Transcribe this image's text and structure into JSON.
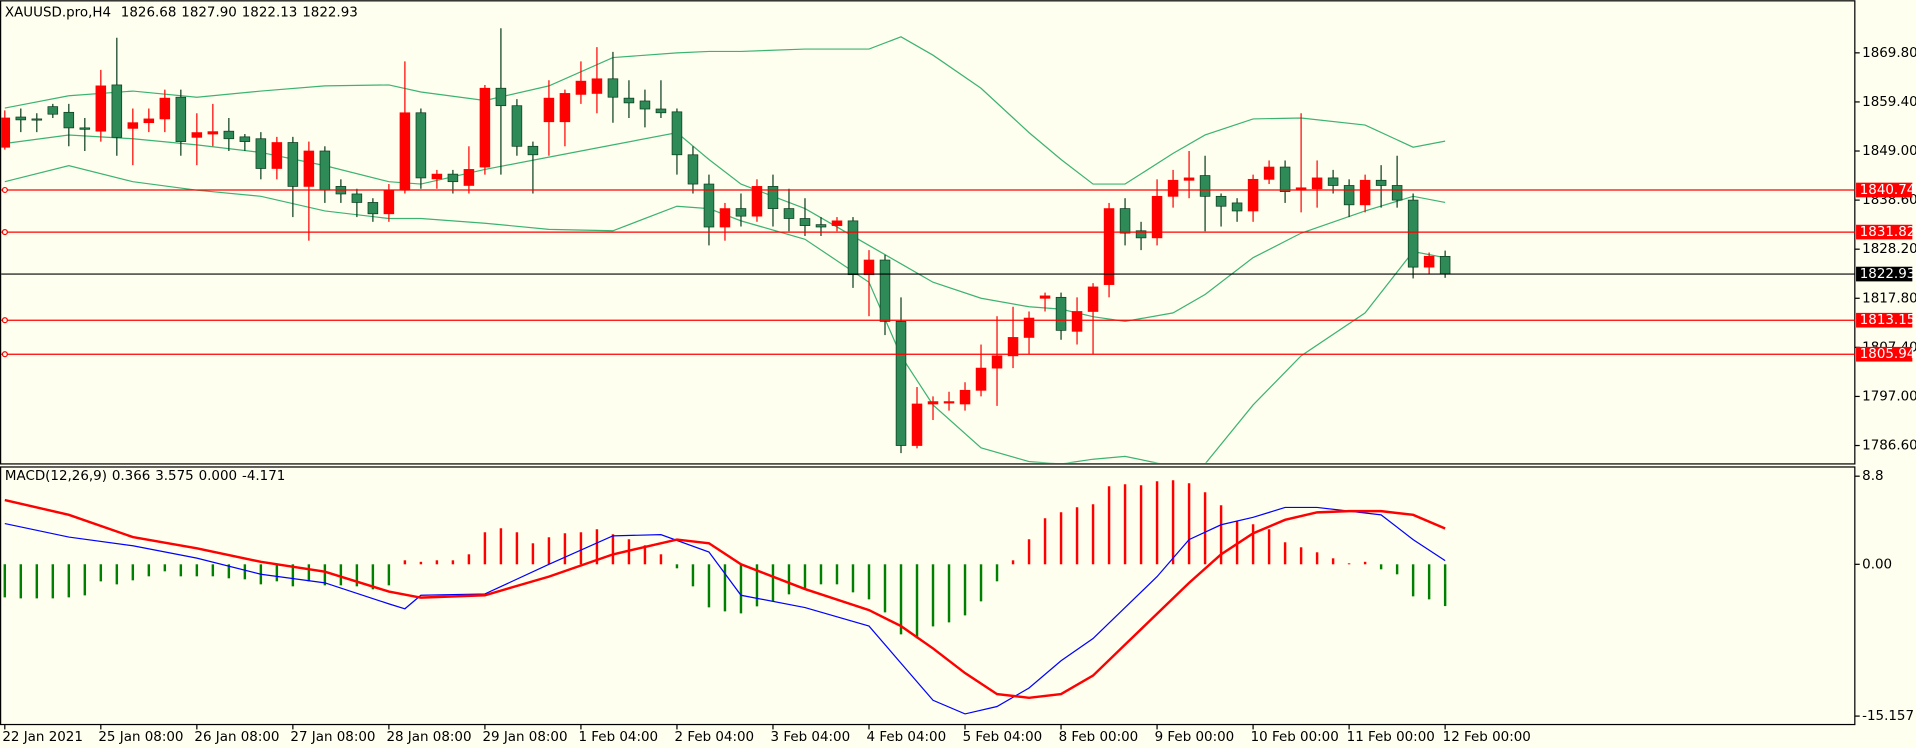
{
  "chart_data": {
    "type": "candlestick",
    "symbol": "XAUUSD.pro,H4",
    "header_values": [
      1826.68,
      {
        "value": 1827.9,
        "label": "1827.90"
      },
      1822.13,
      1822.93
    ],
    "categories": [
      "22 Jan 2021",
      null,
      null,
      null,
      null,
      null,
      "25 Jan 08:00",
      null,
      null,
      null,
      null,
      null,
      "26 Jan 08:00",
      null,
      null,
      null,
      null,
      null,
      "27 Jan 08:00",
      null,
      null,
      null,
      null,
      null,
      "28 Jan 08:00",
      null,
      null,
      null,
      null,
      null,
      "29 Jan 08:00",
      null,
      null,
      null,
      null,
      null,
      "1 Feb 04:00",
      null,
      null,
      null,
      null,
      null,
      "2 Feb 04:00",
      null,
      null,
      null,
      null,
      null,
      "3 Feb 04:00",
      null,
      null,
      null,
      null,
      null,
      "4 Feb 04:00",
      null,
      null,
      null,
      null,
      null,
      "5 Feb 04:00",
      null,
      null,
      null,
      null,
      null,
      "8 Feb 00:00",
      null,
      null,
      null,
      null,
      null,
      "9 Feb 00:00",
      null,
      null,
      null,
      null,
      null,
      "10 Feb 00:00",
      null,
      null,
      null,
      null,
      null,
      "11 Feb 00:00",
      null,
      null,
      null,
      null,
      null,
      "12 Feb 00:00"
    ],
    "open": [
      1849.8,
      1856.2,
      1855.8,
      1858.4,
      1857.2,
      1853.9,
      1853.2,
      1863,
      1853.8,
      1855,
      1855.8,
      1860.4,
      1851.9,
      1852.6,
      1853.2,
      1852,
      1851.6,
      1845.3,
      1850.8,
      1841.5,
      1849,
      1841.5,
      1839.9,
      1838.1,
      1835.7,
      1840.7,
      1857.1,
      1843.1,
      1844.1,
      1841.7,
      1845.6,
      1862.3,
      1858.6,
      1850,
      1855.2,
      1855.2,
      1861,
      1861.2,
      1864.3,
      1860.2,
      1859.6,
      1857.9,
      1857.3,
      1848.2,
      1842,
      1832.9,
      1836.8,
      1835.2,
      1841.5,
      1836.8,
      1834.7,
      1833.4,
      1833.2,
      1834.2,
      1822.8,
      1825.9,
      1812.9,
      1786.6,
      1795.4,
      1795.6,
      1795.4,
      1798.3,
      1803,
      1805.6,
      1809.5,
      1817.8,
      1818,
      1810.8,
      1815,
      1820.7,
      1836.8,
      1832.1,
      1830.6,
      1839.4,
      1842.8,
      1843.8,
      1839.4,
      1838,
      1836.3,
      1843,
      1845.6,
      1840.7,
      1841,
      1843.3,
      1841.7,
      1837.6,
      1842.8,
      1841.7,
      1838.6,
      1824.4,
      1826.68
    ],
    "high": [
      1857.6,
      1858,
      1857,
      1859,
      1859,
      1856,
      1866.2,
      1873,
      1858,
      1858,
      1862,
      1862,
      1857,
      1859,
      1856,
      1852.6,
      1853,
      1852,
      1852,
      1851,
      1850,
      1843,
      1841,
      1839,
      1842,
      1868,
      1858,
      1845,
      1845,
      1850,
      1863,
      1875,
      1860,
      1851,
      1864,
      1862,
      1868,
      1871,
      1870,
      1864,
      1862,
      1864,
      1858,
      1850,
      1844,
      1838,
      1840,
      1843,
      1844,
      1841,
      1839,
      1835,
      1835,
      1835,
      1828,
      1827,
      1818,
      1799,
      1797,
      1798,
      1800,
      1808,
      1814,
      1816,
      1815,
      1819,
      1819,
      1818,
      1821,
      1838,
      1839,
      1834,
      1843,
      1845,
      1849,
      1848,
      1840,
      1839,
      1844,
      1847,
      1847,
      1857,
      1847,
      1845,
      1843,
      1844,
      1846,
      1848,
      1840,
      1827.5,
      1827.9
    ],
    "low": [
      1849.3,
      1853,
      1853,
      1856,
      1850,
      1849,
      1851,
      1848,
      1846,
      1853,
      1853,
      1848,
      1846,
      1850,
      1849,
      1849,
      1843,
      1843,
      1835,
      1830,
      1838,
      1838,
      1835,
      1834,
      1834,
      1840,
      1841,
      1841,
      1840,
      1840,
      1844,
      1844,
      1848,
      1840,
      1848,
      1850,
      1859,
      1857,
      1855,
      1856,
      1854,
      1856,
      1844,
      1840,
      1829,
      1830,
      1833,
      1834,
      1833,
      1832,
      1831,
      1831,
      1832,
      1820,
      1814,
      1810,
      1785,
      1786,
      1792,
      1794,
      1794,
      1797,
      1795,
      1803,
      1806,
      1815,
      1809,
      1808,
      1806,
      1818,
      1829,
      1828,
      1829,
      1837,
      1839,
      1832,
      1833,
      1834,
      1834,
      1842,
      1838,
      1836,
      1837,
      1840,
      1835,
      1836,
      1837,
      1837,
      1822,
      1823,
      1822.13
    ],
    "close": [
      1856,
      1855.6,
      1855.6,
      1856.8,
      1853.9,
      1853.6,
      1862.8,
      1851.9,
      1855,
      1855.8,
      1860.2,
      1851,
      1852.9,
      1853.1,
      1851.6,
      1851,
      1845.3,
      1850.8,
      1841.5,
      1849,
      1840.7,
      1839.9,
      1838.1,
      1835.7,
      1840.7,
      1857.1,
      1843.3,
      1844.1,
      1842.5,
      1845.1,
      1862.3,
      1858.6,
      1850,
      1848.2,
      1860.2,
      1861.2,
      1863.8,
      1864.3,
      1860.4,
      1859.2,
      1857.9,
      1857.1,
      1848.2,
      1842,
      1832.9,
      1836.8,
      1835.2,
      1841.5,
      1836.8,
      1834.7,
      1833.2,
      1832.9,
      1834.2,
      1822.8,
      1825.9,
      1812.9,
      1786.6,
      1795.4,
      1795.9,
      1795.9,
      1798.3,
      1803,
      1805.6,
      1809.5,
      1813.6,
      1818.3,
      1811,
      1815,
      1820.2,
      1836.8,
      1831.6,
      1830.6,
      1839.4,
      1842.8,
      1843.3,
      1839.4,
      1837.3,
      1836.3,
      1843,
      1845.6,
      1840.4,
      1841.2,
      1843.3,
      1841.7,
      1837.6,
      1842.8,
      1841.7,
      1838.6,
      1824.4,
      1826.7,
      1822.93
    ],
    "up_color": "#ff0000",
    "down_color": "#2e8b57",
    "xlim": [
      -0.3,
      115.6
    ],
    "ylim": [
      1782.7,
      1880.95
    ],
    "yticks": [
      {
        "value": 1869.8,
        "label": "1869.80"
      },
      {
        "value": 1859.4,
        "label": "1859.40"
      },
      {
        "value": 1849,
        "label": "1849.00"
      },
      {
        "value": 1838.6,
        "label": "1838.60"
      },
      {
        "value": 1828.2,
        "label": "1828.20"
      },
      {
        "value": 1817.8,
        "label": "1817.80"
      },
      {
        "value": 1807.4,
        "label": "1807.40"
      },
      {
        "value": 1797,
        "label": "1797.00"
      },
      {
        "value": 1786.6,
        "label": "1786.60"
      }
    ],
    "bands": {
      "color": "#3cb371",
      "x": [
        0,
        4,
        8,
        12,
        16,
        20,
        24,
        26,
        30,
        34,
        38,
        42,
        44,
        46,
        50,
        54,
        56,
        58,
        61,
        64,
        66,
        68,
        70,
        73,
        75,
        78,
        81,
        85,
        88,
        90
      ],
      "upper": [
        1858.1,
        1860.7,
        1861.7,
        1860.4,
        1861.7,
        1862.8,
        1863.0,
        1861.5,
        1859.7,
        1862.8,
        1868.8,
        1869.8,
        1870.1,
        1870.1,
        1870.6,
        1870.6,
        1873.2,
        1869.3,
        1862.3,
        1852.9,
        1847.2,
        1842.0,
        1842.0,
        1848.5,
        1852.4,
        1855.8,
        1856.0,
        1854.5,
        1849.8,
        1851.1
      ],
      "middle": [
        1850.6,
        1852.4,
        1851.6,
        1850.3,
        1848.7,
        1845.9,
        1842.5,
        1842.0,
        1845.1,
        1847.7,
        1850.3,
        1852.9,
        1847.2,
        1842.0,
        1836.8,
        1829.0,
        1825.1,
        1821.2,
        1817.8,
        1816.0,
        1815.5,
        1813.9,
        1812.9,
        1814.7,
        1818.6,
        1826.4,
        1831.6,
        1836.3,
        1839.4,
        1838.1
      ],
      "lower": [
        1842.5,
        1845.9,
        1842.5,
        1840.7,
        1839.4,
        1836.3,
        1834.7,
        1834.7,
        1833.7,
        1832.4,
        1832.1,
        1837.3,
        1836.8,
        1834.2,
        1830.3,
        1821.2,
        1805.6,
        1795.2,
        1786.1,
        1783.2,
        1782.7,
        1783.7,
        1784.3,
        1782.2,
        1782.7,
        1795.2,
        1805.6,
        1814.7,
        1827.7,
        1826.4
      ]
    },
    "levels": {
      "color": "#ff0000",
      "values": [
        1840.74,
        1831.82,
        1813.15,
        1805.94
      ]
    },
    "price_line_color": "#000000",
    "indicator": {
      "type": "macd",
      "title": "MACD(12,26,9)",
      "readout": [
        0.366,
        3.575,
        {
          "value": 0,
          "label": "0.000"
        },
        -4.171
      ],
      "ylim": [
        -16.0,
        9.78
      ],
      "yticks": [
        8.8,
        {
          "value": 0,
          "label": "0.00"
        },
        -15.157
      ],
      "histogram": [
        -3.3,
        -3.4,
        -3.4,
        -3.4,
        -3.3,
        -3.1,
        -1.7,
        -2.0,
        -1.6,
        -1.2,
        -0.7,
        -1.2,
        -1.2,
        -1.2,
        -1.4,
        -1.5,
        -2.0,
        -1.7,
        -2.2,
        -1.7,
        -2.1,
        -2.1,
        -2.2,
        -2.5,
        -2.1,
        0.4,
        0.25,
        0.4,
        0.4,
        1.0,
        3.2,
        3.6,
        3.2,
        2.1,
        2.7,
        3.1,
        3.2,
        3.5,
        3.0,
        2.5,
        1.9,
        1.0,
        -0.4,
        -2.2,
        -4.3,
        -4.7,
        -4.9,
        -4.2,
        -3.7,
        -3.0,
        -2.5,
        -2.0,
        -2.0,
        -2.8,
        -3.5,
        -4.8,
        -7.0,
        -7.4,
        -6.2,
        -5.8,
        -5.1,
        -3.7,
        -1.7,
        0.4,
        2.5,
        4.6,
        5.2,
        5.7,
        6.0,
        7.8,
        8.0,
        7.9,
        8.3,
        8.4,
        8.1,
        7.2,
        5.9,
        4.3,
        4.0,
        3.5,
        2.2,
        1.7,
        1.2,
        0.6,
        0.1,
        0.25,
        -0.5,
        -1.0,
        -3.2,
        -3.5,
        -4.171
      ],
      "series": [
        {
          "color": "#0000ff",
          "width": 1,
          "x": [
            0,
            4,
            8,
            12,
            16,
            20,
            24,
            25,
            26,
            30,
            34,
            38,
            41,
            44,
            46,
            50,
            54,
            56,
            58,
            60,
            62,
            64,
            66,
            68,
            70,
            72,
            74,
            76,
            78,
            80,
            82,
            84,
            86,
            88,
            90
          ],
          "values": [
            4.07,
            2.72,
            1.85,
            0.62,
            -0.99,
            -1.85,
            -3.95,
            -4.44,
            -3.09,
            -2.96,
            0,
            2.84,
            2.96,
            1.23,
            -3.09,
            -4.32,
            -6.17,
            -9.88,
            -13.58,
            -14.94,
            -14.2,
            -12.35,
            -9.63,
            -7.41,
            -4.32,
            -1.23,
            2.47,
            3.95,
            4.69,
            5.68,
            5.68,
            5.31,
            4.94,
            2.47,
            0.366
          ]
        },
        {
          "color": "#ff0000",
          "width": 2,
          "x": [
            0,
            4,
            8,
            12,
            16,
            20,
            24,
            26,
            30,
            34,
            38,
            42,
            44,
            46,
            50,
            54,
            56,
            58,
            60,
            62,
            64,
            66,
            68,
            70,
            72,
            74,
            76,
            78,
            80,
            82,
            84,
            86,
            88,
            90
          ],
          "values": [
            6.42,
            4.94,
            2.72,
            1.6,
            0.25,
            -0.74,
            -2.72,
            -3.33,
            -3.09,
            -1.23,
            0.99,
            2.47,
            2.1,
            0,
            -2.47,
            -4.57,
            -6.17,
            -8.4,
            -10.86,
            -12.96,
            -13.33,
            -12.96,
            -11.11,
            -8.02,
            -4.94,
            -1.85,
            0.99,
            3.09,
            4.44,
            5.19,
            5.31,
            5.31,
            4.94,
            3.575
          ]
        }
      ]
    }
  }
}
